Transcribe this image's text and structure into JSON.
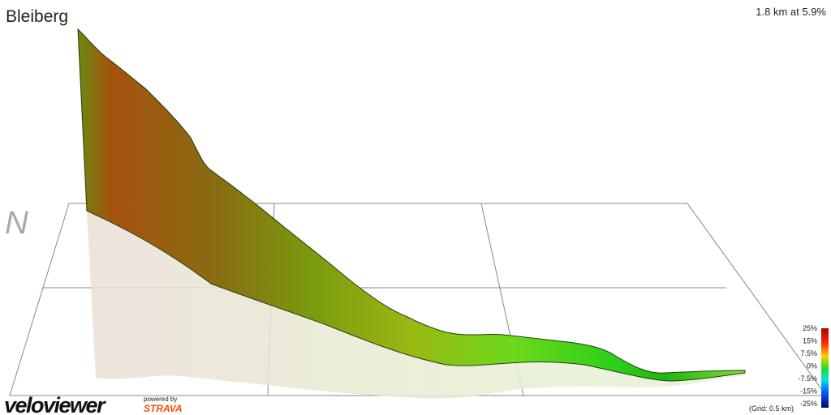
{
  "header": {
    "title": "Bleiberg",
    "summary": "1.8 km at 5.9%"
  },
  "compass": "N",
  "legend": {
    "labels": [
      "25%",
      "15%",
      "7.5%",
      "0%",
      "-7.5%",
      "-15%",
      "-25%"
    ],
    "grid_note": "(Grid: 0.5 km)"
  },
  "footer": {
    "logo": "veloviewer",
    "powered_by": "powered by",
    "partner": "STRAVA"
  }
}
